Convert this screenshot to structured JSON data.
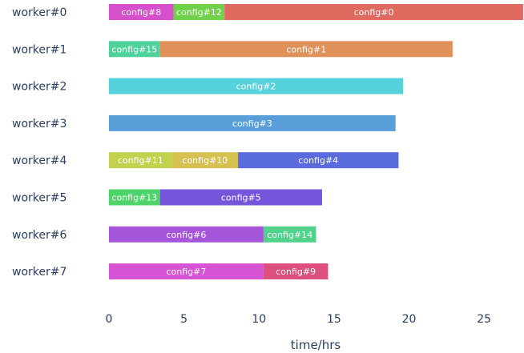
{
  "chart_data": {
    "type": "bar",
    "orientation": "horizontal-stacked",
    "xlabel": "time/hrs",
    "xlim": [
      0,
      27.5
    ],
    "xticks": [
      0,
      5,
      10,
      15,
      20,
      25
    ],
    "grid": false,
    "workers": [
      {
        "name": "worker#0",
        "segments": [
          {
            "label": "config#8",
            "start": 0,
            "end": 4.3,
            "color": "#d64fcd"
          },
          {
            "label": "config#12",
            "start": 4.3,
            "end": 7.7,
            "color": "#6fd24a"
          },
          {
            "label": "config#0",
            "start": 7.7,
            "end": 27.6,
            "color": "#e06a5f"
          }
        ]
      },
      {
        "name": "worker#1",
        "segments": [
          {
            "label": "config#15",
            "start": 0,
            "end": 3.4,
            "color": "#4fd19b"
          },
          {
            "label": "config#1",
            "start": 3.4,
            "end": 22.9,
            "color": "#e0915a"
          }
        ]
      },
      {
        "name": "worker#2",
        "segments": [
          {
            "label": "config#2",
            "start": 0,
            "end": 19.6,
            "color": "#56d2dc"
          }
        ]
      },
      {
        "name": "worker#3",
        "segments": [
          {
            "label": "config#3",
            "start": 0,
            "end": 19.1,
            "color": "#589fda"
          }
        ]
      },
      {
        "name": "worker#4",
        "segments": [
          {
            "label": "config#11",
            "start": 0,
            "end": 4.2,
            "color": "#c3d24e"
          },
          {
            "label": "config#10",
            "start": 4.2,
            "end": 8.6,
            "color": "#d6c052"
          },
          {
            "label": "config#4",
            "start": 8.6,
            "end": 19.3,
            "color": "#5a6bdd"
          }
        ]
      },
      {
        "name": "worker#5",
        "segments": [
          {
            "label": "config#13",
            "start": 0,
            "end": 3.4,
            "color": "#4ed36a"
          },
          {
            "label": "config#5",
            "start": 3.4,
            "end": 14.2,
            "color": "#7556db"
          }
        ]
      },
      {
        "name": "worker#6",
        "segments": [
          {
            "label": "config#6",
            "start": 0,
            "end": 10.3,
            "color": "#a455d9"
          },
          {
            "label": "config#14",
            "start": 10.3,
            "end": 13.8,
            "color": "#4fd28a"
          }
        ]
      },
      {
        "name": "worker#7",
        "segments": [
          {
            "label": "config#7",
            "start": 0,
            "end": 10.3,
            "color": "#d653d3"
          },
          {
            "label": "config#9",
            "start": 10.3,
            "end": 14.6,
            "color": "#dd4f7c"
          }
        ]
      }
    ]
  }
}
